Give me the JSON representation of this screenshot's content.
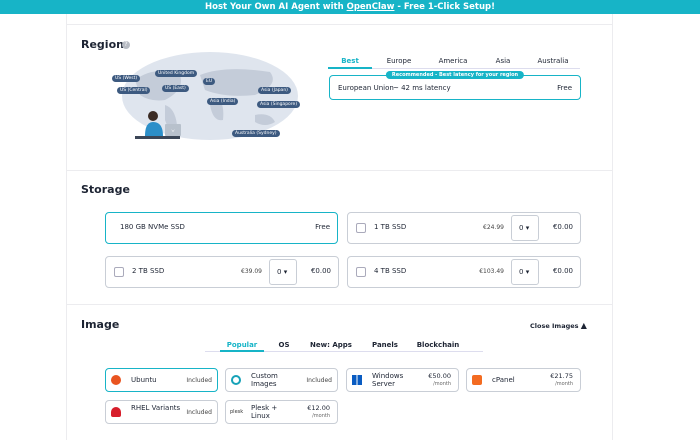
{
  "banner": {
    "text": "Host Your Own AI Agent with ",
    "link": "OpenClaw",
    "suffix": " - Free 1-Click Setup!"
  },
  "region": {
    "title": "Region",
    "help": "?",
    "map_labels": [
      "US (West)",
      "United Kingdom",
      "EU",
      "US (Central)",
      "US (East)",
      "Asia (Japan)",
      "Asia (India)",
      "Asia (Singapore)",
      "Australia (Sydney)"
    ],
    "tabs": [
      "Best",
      "Europe",
      "America",
      "Asia",
      "Australia"
    ],
    "recommended": "Recommended - Best latency for your region",
    "option": {
      "name": "European Union",
      "latency": "~ 42 ms latency",
      "price": "Free"
    }
  },
  "storage": {
    "title": "Storage",
    "options": [
      {
        "name": "180 GB NVMe SSD",
        "price": "Free"
      },
      {
        "name": "1 TB SSD",
        "price": "€24.99",
        "quantity": 0,
        "total": "€0.00"
      },
      {
        "name": "2 TB SSD",
        "price": "€39.09",
        "quantity": 0,
        "total": "€0.00"
      },
      {
        "name": "4 TB SSD",
        "price": "€103.49",
        "quantity": 0,
        "total": "€0.00"
      }
    ]
  },
  "image": {
    "title": "Image",
    "toggle": "Close Images",
    "tabs": [
      "Popular",
      "OS",
      "New: Apps",
      "Panels",
      "Blockchain"
    ],
    "items": [
      {
        "name": "Ubuntu",
        "price": "Included"
      },
      {
        "name": "Custom Images",
        "price": "Included"
      },
      {
        "name": "Windows Server",
        "price": "€50.00",
        "period": "/month"
      },
      {
        "name": "cPanel",
        "price": "€21.75",
        "period": "/month"
      },
      {
        "name": "RHEL Variants",
        "price": "Included"
      },
      {
        "name": "Plesk + Linux",
        "price": "€12.00",
        "period": "/month",
        "icon_text": "plesk"
      }
    ]
  }
}
